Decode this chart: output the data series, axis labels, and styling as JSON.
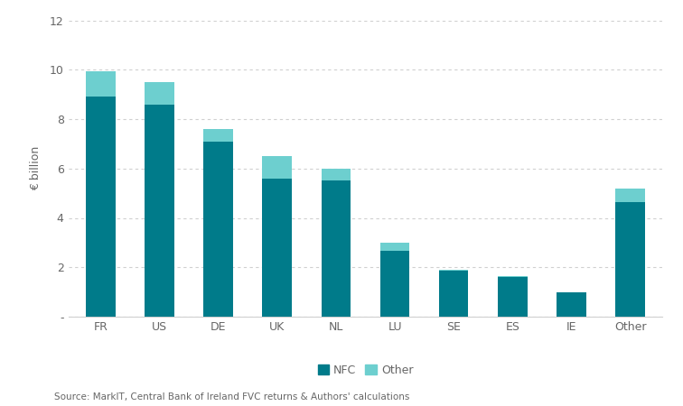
{
  "categories": [
    "FR",
    "US",
    "DE",
    "UK",
    "NL",
    "LU",
    "SE",
    "ES",
    "IE",
    "Other"
  ],
  "nfc_values": [
    8.9,
    8.6,
    7.1,
    5.6,
    5.5,
    2.65,
    1.85,
    1.6,
    1.0,
    4.65
  ],
  "other_values": [
    1.05,
    0.9,
    0.5,
    0.9,
    0.5,
    0.35,
    0.05,
    0.05,
    0.0,
    0.55
  ],
  "nfc_color": "#007B8A",
  "other_color": "#6DCFCF",
  "ylabel": "€ billion",
  "ylim": [
    0,
    12
  ],
  "yticks": [
    0,
    2,
    4,
    6,
    8,
    10,
    12
  ],
  "ytick_labels": [
    "-",
    "2",
    "4",
    "6",
    "8",
    "10",
    "12"
  ],
  "legend_labels": [
    "NFC",
    "Other"
  ],
  "source_text": "Source: MarkIT, Central Bank of Ireland FVC returns & Authors' calculations",
  "background_color": "#ffffff",
  "grid_color": "#d0d0d0",
  "bar_width": 0.5
}
